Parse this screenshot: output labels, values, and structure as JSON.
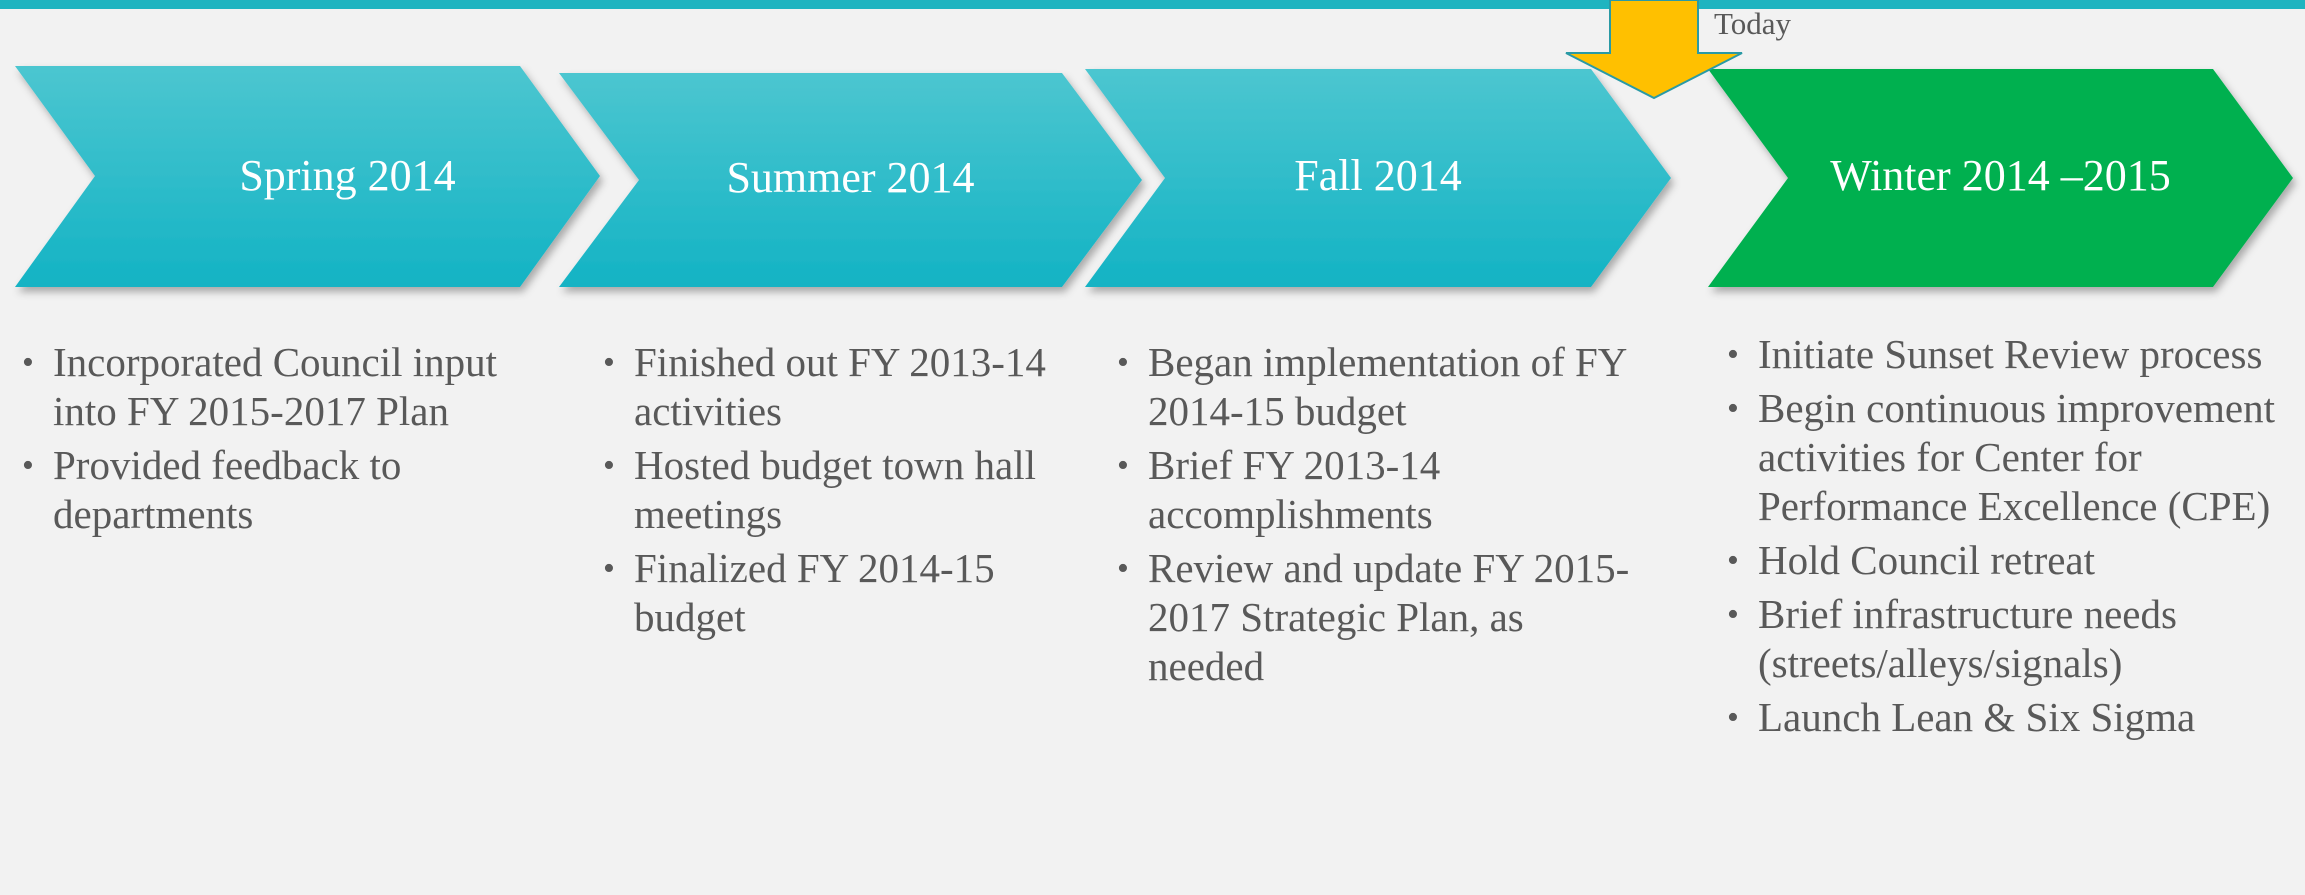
{
  "today_label": "Today",
  "phases": [
    {
      "title": "Spring 2014",
      "bullets": [
        "Incorporated Council input into FY 2015-2017 Plan",
        "Provided feedback to departments"
      ]
    },
    {
      "title": "Summer 2014",
      "bullets": [
        "Finished out FY 2013-14 activities",
        "Hosted budget town hall meetings",
        "Finalized FY 2014-15 budget"
      ]
    },
    {
      "title": "Fall 2014",
      "bullets": [
        "Began implementation of FY 2014-15 budget",
        "Brief FY 2013-14 accomplishments",
        "Review and update FY 2015-2017 Strategic Plan, as needed"
      ]
    },
    {
      "title": "Winter 2014 –2015",
      "bullets": [
        "Initiate Sunset Review process",
        "Begin continuous improvement activities for Center for Performance Excellence (CPE)",
        "Hold Council retreat",
        "Brief infrastructure needs (streets/alleys/signals)",
        "Launch Lean & Six Sigma"
      ]
    }
  ]
}
